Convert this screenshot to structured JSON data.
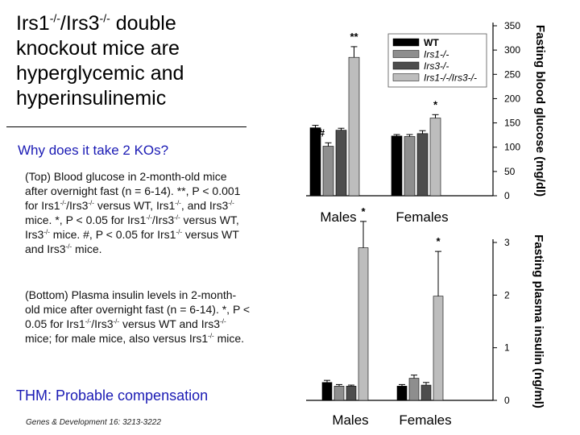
{
  "slide": {
    "title_parts": [
      "Irs1",
      "-/-",
      "/Irs3",
      "-/-",
      " double knockout mice are hyperglycemic and hyperinsulinemic"
    ],
    "question": "Why does it take 2 KOs?",
    "caption_top": [
      "(Top)  Blood glucose in 2-month-old mice after overnight fast (n = 6-14). **, P < 0.001 for Irs1",
      "-/-",
      "/Irs3",
      "-/-",
      " versus WT, Irs1",
      "-/-",
      ", and Irs3",
      "-/-",
      " mice. *, P < 0.05 for Irs1",
      "-/-",
      "/Irs3",
      "-/-",
      " versus WT, Irs3",
      "-/-",
      " mice. #, P < 0.05 for Irs1",
      "-/-",
      " versus WT and Irs3",
      "-/-",
      " mice."
    ],
    "caption_bottom": [
      "(Bottom) Plasma insulin levels in 2-month-old mice after overnight fast (n = 6-14). *, P < 0.05 for Irs1",
      "-/-",
      "/Irs3",
      "-/-",
      " versus WT and Irs3",
      "-/-",
      " mice; for male mice, also versus Irs1",
      "-/-",
      " mice."
    ],
    "thm": "THM: Probable compensation",
    "reference": "Genes & Development 16: 3213-3222"
  },
  "chart_data": [
    {
      "type": "bar",
      "ylabel": "Fasting blood glucose (mg/dl)",
      "yticks": [
        0,
        50,
        100,
        150,
        200,
        250,
        300,
        350
      ],
      "ylim": [
        0,
        350
      ],
      "categories": [
        "Males",
        "Females"
      ],
      "legend": {
        "placement": "top-right",
        "entries": [
          "WT",
          "Irs1-/-",
          "Irs3-/-",
          "Irs1-/-/Irs3-/-"
        ]
      },
      "series": [
        {
          "name": "WT",
          "color": "#000000",
          "values": [
            140,
            123
          ],
          "errors": [
            5,
            3
          ]
        },
        {
          "name": "Irs1-/-",
          "color": "#8e8e8e",
          "values": [
            102,
            122
          ],
          "errors": [
            7,
            4
          ]
        },
        {
          "name": "Irs3-/-",
          "color": "#4d4d4d",
          "values": [
            135,
            128
          ],
          "errors": [
            4,
            6
          ]
        },
        {
          "name": "Irs1-/-/Irs3-/-",
          "color": "#bdbdbd",
          "values": [
            285,
            160
          ],
          "errors": [
            22,
            7
          ]
        }
      ],
      "annotations": [
        {
          "text": "#",
          "category": 0,
          "series": 1
        },
        {
          "text": "**",
          "category": 0,
          "series": 3
        },
        {
          "text": "*",
          "category": 1,
          "series": 3
        }
      ]
    },
    {
      "type": "bar",
      "ylabel": "Fasting plasma insulin (ng/ml)",
      "yticks": [
        0,
        1,
        2,
        3
      ],
      "ylim": [
        0,
        3
      ],
      "categories": [
        "Males",
        "Females"
      ],
      "series": [
        {
          "name": "WT",
          "color": "#000000",
          "values": [
            0.34,
            0.27
          ],
          "errors": [
            0.04,
            0.03
          ]
        },
        {
          "name": "Irs1-/-",
          "color": "#8e8e8e",
          "values": [
            0.27,
            0.42
          ],
          "errors": [
            0.03,
            0.06
          ]
        },
        {
          "name": "Irs3-/-",
          "color": "#4d4d4d",
          "values": [
            0.27,
            0.29
          ],
          "errors": [
            0.02,
            0.05
          ]
        },
        {
          "name": "Irs1-/-/Irs3-/-",
          "color": "#bdbdbd",
          "values": [
            2.9,
            1.98
          ],
          "errors": [
            0.5,
            0.85
          ]
        }
      ],
      "annotations": [
        {
          "text": "*",
          "category": 0,
          "series": 3
        },
        {
          "text": "*",
          "category": 1,
          "series": 3
        }
      ]
    }
  ]
}
